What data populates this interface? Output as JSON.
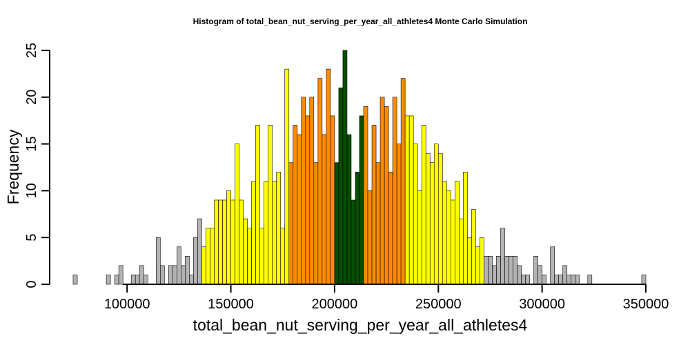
{
  "chart_data": {
    "type": "bar",
    "title": "Histogram of  total_bean_nut_serving_per_year_all_athletes4  Monte Carlo Simulation",
    "xlabel": "total_bean_nut_serving_per_year_all_athletes4",
    "ylabel": "Frequency",
    "xlim": [
      74000,
      350000
    ],
    "ylim": [
      0,
      25
    ],
    "bin_start": 74000,
    "bin_width": 2000,
    "x_ticks": [
      100000,
      150000,
      200000,
      250000,
      300000,
      350000
    ],
    "y_ticks": [
      0,
      5,
      10,
      15,
      20,
      25
    ],
    "colors": {
      "tail": "#b3b3b3",
      "yellow": "#ffff00",
      "orange": "#ff8c00",
      "green": "#0a4d04"
    },
    "bands": [
      {
        "from": 74000,
        "to": 136000,
        "color": "tail"
      },
      {
        "from": 136000,
        "to": 178000,
        "color": "yellow"
      },
      {
        "from": 178000,
        "to": 200000,
        "color": "orange"
      },
      {
        "from": 200000,
        "to": 214000,
        "color": "green"
      },
      {
        "from": 214000,
        "to": 234000,
        "color": "orange"
      },
      {
        "from": 234000,
        "to": 272000,
        "color": "yellow"
      },
      {
        "from": 272000,
        "to": 350000,
        "color": "tail"
      }
    ],
    "values": [
      1,
      0,
      0,
      0,
      0,
      0,
      0,
      0,
      1,
      0,
      1,
      2,
      0,
      0,
      1,
      1,
      2,
      1,
      0,
      0,
      5,
      2,
      0,
      2,
      2,
      4,
      2,
      3,
      1,
      5,
      7,
      4,
      6,
      6,
      9,
      9,
      9,
      10,
      9,
      15,
      9,
      7,
      6,
      11,
      17,
      6,
      11,
      17,
      11,
      12,
      6,
      23,
      13,
      17,
      16,
      20,
      18,
      20,
      13,
      22,
      16,
      23,
      18,
      13,
      21,
      25,
      16,
      9,
      12,
      18,
      19,
      10,
      17,
      13,
      20,
      19,
      12,
      20,
      15,
      22,
      18,
      18,
      15,
      10,
      17,
      14,
      13,
      15,
      14,
      11,
      10,
      9,
      11,
      7,
      12,
      5,
      8,
      4,
      5,
      3,
      3,
      2,
      3,
      6,
      3,
      3,
      3,
      2,
      1,
      1,
      0,
      3,
      2,
      1,
      0,
      4,
      1,
      1,
      2,
      1,
      1,
      1,
      0,
      0,
      1,
      0,
      0,
      0,
      0,
      0,
      0,
      0,
      0,
      0,
      0,
      0,
      0,
      1
    ]
  }
}
